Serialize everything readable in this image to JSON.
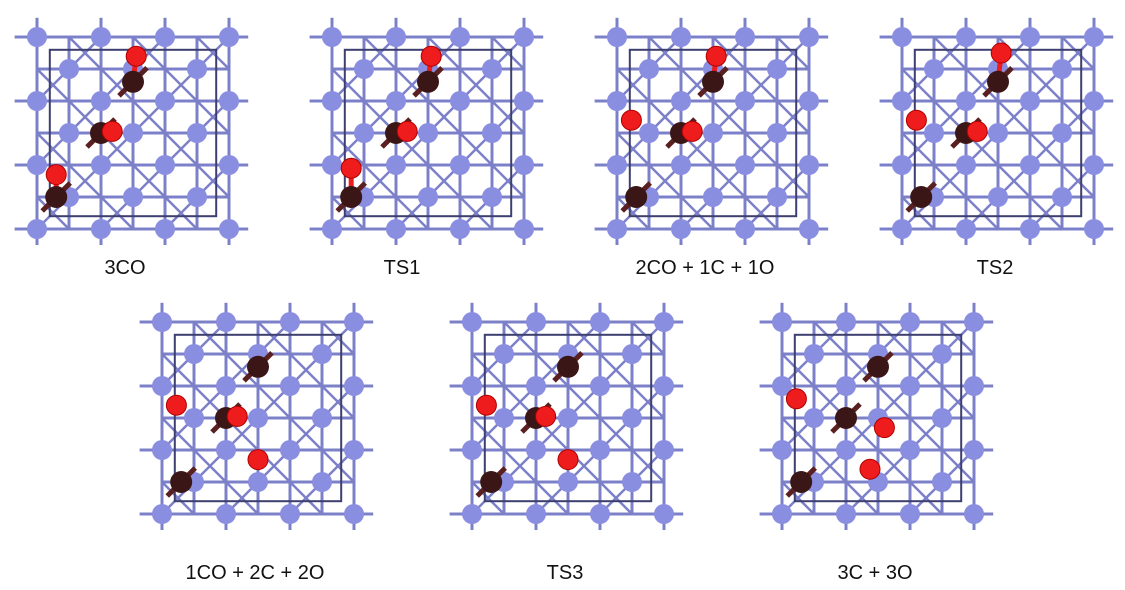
{
  "colors": {
    "metal": "#8a8ee0",
    "metal_bond": "#7c80c8",
    "cell_edge": "#3c3f70",
    "carbon": "#3a1616",
    "oxygen": "#ee1c1c",
    "caption": "#111111"
  },
  "panels": [
    {
      "label": "3CO",
      "carbons": [
        [
          3,
          1.4
        ],
        [
          2,
          3.0
        ],
        [
          0.6,
          5.0
        ]
      ],
      "oxygens": [
        [
          3.1,
          0.6
        ],
        [
          2.35,
          2.95
        ],
        [
          0.6,
          4.3
        ]
      ],
      "bonds": [
        [
          0,
          0
        ],
        [
          1,
          1
        ],
        [
          2,
          2
        ]
      ]
    },
    {
      "label": "TS1",
      "carbons": [
        [
          3,
          1.4
        ],
        [
          2,
          3.0
        ],
        [
          0.6,
          5.0
        ]
      ],
      "oxygens": [
        [
          3.1,
          0.6
        ],
        [
          2.35,
          2.95
        ],
        [
          0.6,
          4.1
        ]
      ],
      "bonds": [
        [
          0,
          0
        ],
        [
          1,
          1
        ],
        [
          2,
          2
        ]
      ]
    },
    {
      "label": "2CO + 1C + 1O",
      "carbons": [
        [
          3,
          1.4
        ],
        [
          2,
          3.0
        ],
        [
          0.6,
          5.0
        ]
      ],
      "oxygens": [
        [
          3.1,
          0.6
        ],
        [
          2.35,
          2.95
        ],
        [
          0.45,
          2.6
        ]
      ],
      "bonds": [
        [
          0,
          0
        ],
        [
          1,
          1
        ]
      ]
    },
    {
      "label": "TS2",
      "carbons": [
        [
          3,
          1.4
        ],
        [
          2,
          3.0
        ],
        [
          0.6,
          5.0
        ]
      ],
      "oxygens": [
        [
          3.1,
          0.5
        ],
        [
          2.35,
          2.95
        ],
        [
          0.45,
          2.6
        ]
      ],
      "bonds": [
        [
          0,
          0
        ],
        [
          1,
          1
        ]
      ]
    },
    {
      "label": "1CO + 2C + 2O",
      "carbons": [
        [
          3,
          1.4
        ],
        [
          2,
          3.0
        ],
        [
          0.6,
          5.0
        ]
      ],
      "oxygens": [
        [
          2.35,
          2.95
        ],
        [
          0.45,
          2.6
        ],
        [
          3.0,
          4.3
        ]
      ],
      "bonds": [
        [
          1,
          0
        ]
      ]
    },
    {
      "label": "TS3",
      "carbons": [
        [
          3,
          1.4
        ],
        [
          2,
          3.0
        ],
        [
          0.6,
          5.0
        ]
      ],
      "oxygens": [
        [
          2.3,
          2.95
        ],
        [
          0.45,
          2.6
        ],
        [
          3.0,
          4.3
        ]
      ],
      "bonds": [
        [
          1,
          0
        ]
      ]
    },
    {
      "label": "3C + 3O",
      "carbons": [
        [
          3,
          1.4
        ],
        [
          2,
          3.0
        ],
        [
          0.6,
          5.0
        ]
      ],
      "oxygens": [
        [
          0.45,
          2.4
        ],
        [
          3.2,
          3.3
        ],
        [
          2.75,
          4.6
        ]
      ],
      "bonds": []
    }
  ]
}
